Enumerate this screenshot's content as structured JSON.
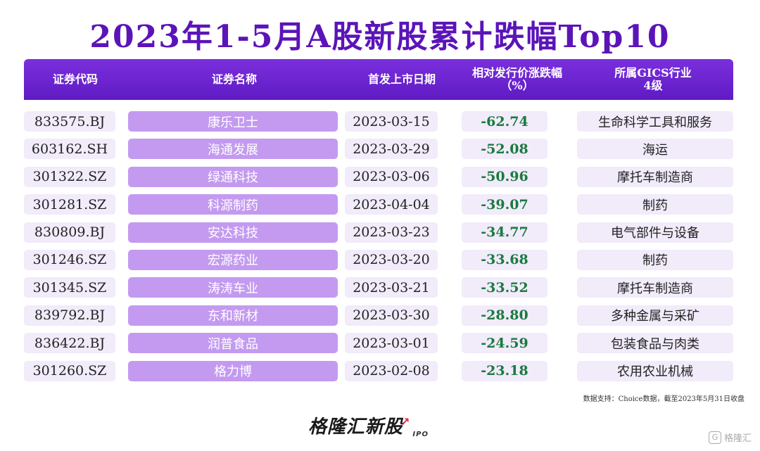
{
  "title": "2023年1-5月A股新股累计跌幅Top10",
  "headers": {
    "code": "证券代码",
    "name": "证券名称",
    "date": "首发上市日期",
    "pct_line1": "相对发行价涨跌幅",
    "pct_line2": "（%）",
    "ind_line1": "所属GICS行业",
    "ind_line2": "4级"
  },
  "rows": [
    {
      "code": "833575.BJ",
      "name": "康乐卫士",
      "date": "2023-03-15",
      "pct": "-62.74",
      "industry": "生命科学工具和服务"
    },
    {
      "code": "603162.SH",
      "name": "海通发展",
      "date": "2023-03-29",
      "pct": "-52.08",
      "industry": "海运"
    },
    {
      "code": "301322.SZ",
      "name": "绿通科技",
      "date": "2023-03-06",
      "pct": "-50.96",
      "industry": "摩托车制造商"
    },
    {
      "code": "301281.SZ",
      "name": "科源制药",
      "date": "2023-04-04",
      "pct": "-39.07",
      "industry": "制药"
    },
    {
      "code": "830809.BJ",
      "name": "安达科技",
      "date": "2023-03-23",
      "pct": "-34.77",
      "industry": "电气部件与设备"
    },
    {
      "code": "301246.SZ",
      "name": "宏源药业",
      "date": "2023-03-20",
      "pct": "-33.68",
      "industry": "制药"
    },
    {
      "code": "301345.SZ",
      "name": "涛涛车业",
      "date": "2023-03-21",
      "pct": "-33.52",
      "industry": "摩托车制造商"
    },
    {
      "code": "839792.BJ",
      "name": "东和新材",
      "date": "2023-03-30",
      "pct": "-28.80",
      "industry": "多种金属与采矿"
    },
    {
      "code": "836422.BJ",
      "name": "润普食品",
      "date": "2023-03-01",
      "pct": "-24.59",
      "industry": "包装食品与肉类"
    },
    {
      "code": "301260.SZ",
      "name": "格力博",
      "date": "2023-02-08",
      "pct": "-23.18",
      "industry": "农用农业机械"
    }
  ],
  "source": "数据支持：Choice数据，截至2023年5月31日收盘",
  "logo": {
    "text": "格隆汇新股",
    "sub": "IPO",
    "icon": "up-arrow-icon"
  },
  "watermark": {
    "icon": "gelonghui-g-icon",
    "text": "格隆汇"
  },
  "colors": {
    "title": "#5b14b8",
    "header_bg": "#6a22cf",
    "name_bg": "#c39af0",
    "cell_bg": "#f1ebfa",
    "negative": "#1a7a3e"
  }
}
